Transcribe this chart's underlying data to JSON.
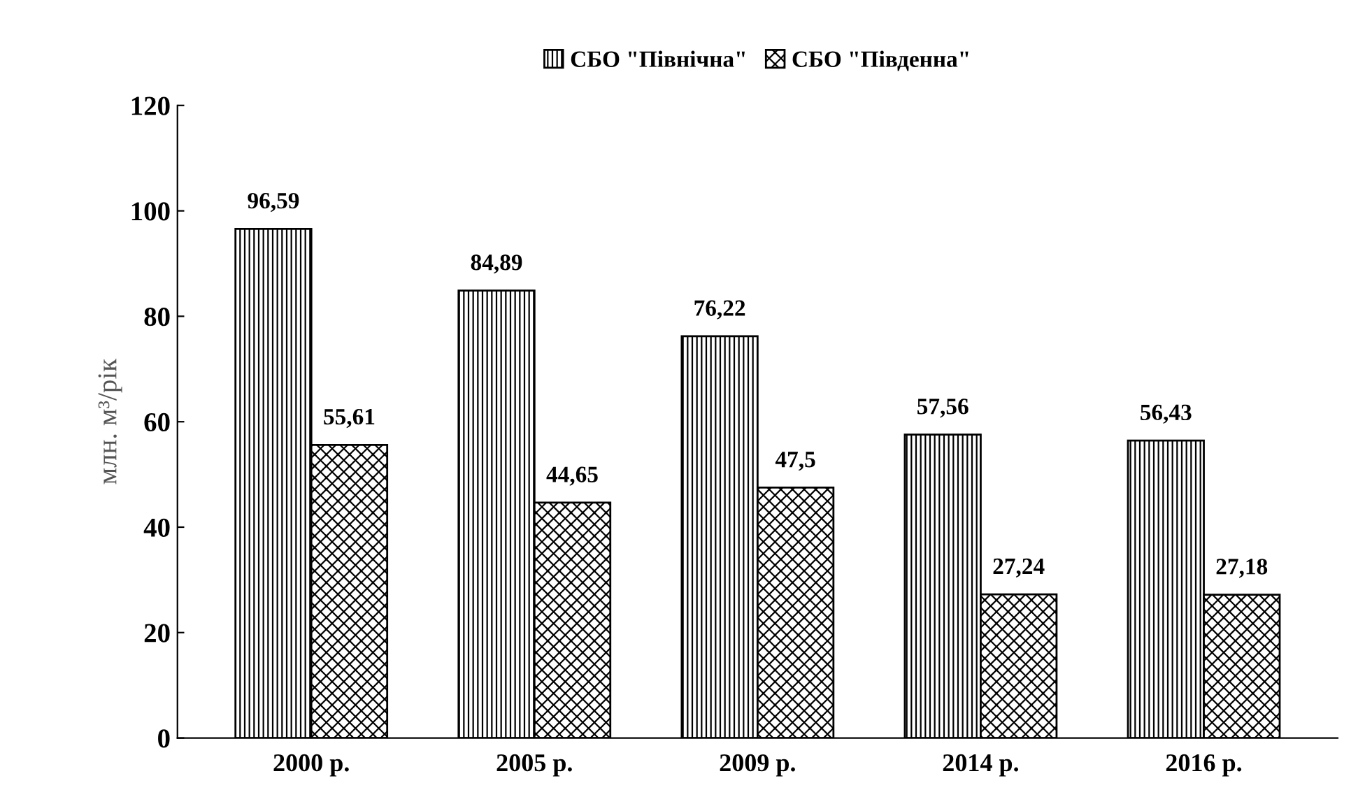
{
  "chart_data": {
    "type": "bar",
    "ylabel": "млн. м³/рік",
    "categories": [
      "2000 р.",
      "2005 р.",
      "2009 р.",
      "2014 р.",
      "2016 р."
    ],
    "series": [
      {
        "name": "СБО \"Північна\"",
        "color": "#000000",
        "values": [
          96.59,
          84.89,
          76.22,
          57.56,
          56.43
        ],
        "value_labels": [
          "96,59",
          "84,89",
          "76,22",
          "57,56",
          "56,43"
        ]
      },
      {
        "name": "СБО \"Південна\"",
        "color": "#000000",
        "values": [
          55.61,
          44.65,
          47.5,
          27.24,
          27.18
        ],
        "value_labels": [
          "55,61",
          "44,65",
          "47,5",
          "27,24",
          "27,18"
        ]
      }
    ],
    "ylim": [
      0,
      120
    ],
    "yticks": [
      0,
      20,
      40,
      60,
      80,
      100,
      120
    ],
    "grid": false,
    "legend": "top"
  }
}
